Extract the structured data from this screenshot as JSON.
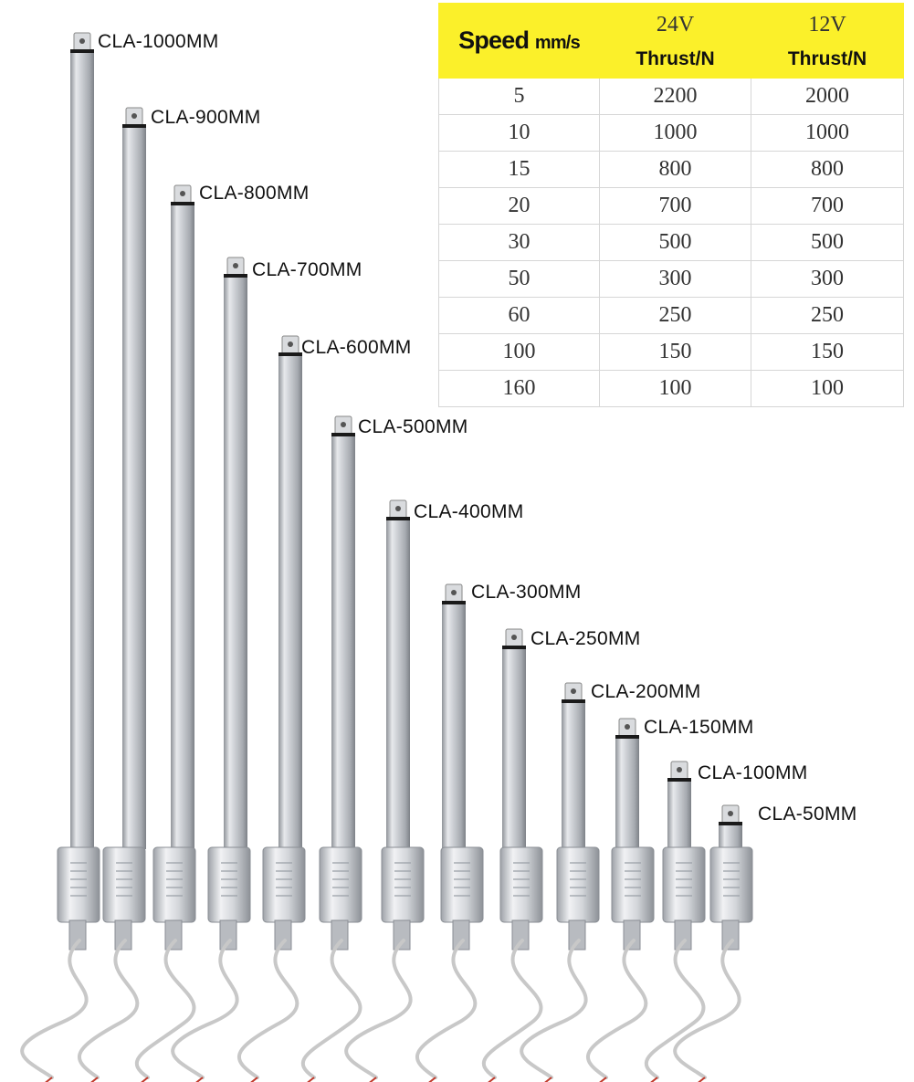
{
  "table": {
    "speed_header": "Speed",
    "speed_unit": "mm/s",
    "voltage_a": "24V",
    "voltage_b": "12V",
    "thrust_a": "Thrust/N",
    "thrust_b": "Thrust/N",
    "header_color": "#fbf02a",
    "rows": [
      {
        "speed": "5",
        "v24": "2200",
        "v12": "2000"
      },
      {
        "speed": "10",
        "v24": "1000",
        "v12": "1000"
      },
      {
        "speed": "15",
        "v24": "800",
        "v12": "800"
      },
      {
        "speed": "20",
        "v24": "700",
        "v12": "700"
      },
      {
        "speed": "30",
        "v24": "500",
        "v12": "500"
      },
      {
        "speed": "50",
        "v24": "300",
        "v12": "300"
      },
      {
        "speed": "60",
        "v24": "250",
        "v12": "250"
      },
      {
        "speed": "100",
        "v24": "150",
        "v12": "150"
      },
      {
        "speed": "160",
        "v24": "100",
        "v12": "100"
      }
    ]
  },
  "actuators": [
    {
      "label": "CLA-1000MM"
    },
    {
      "label": "CLA-900MM"
    },
    {
      "label": "CLA-800MM"
    },
    {
      "label": "CLA-700MM"
    },
    {
      "label": "CLA-600MM"
    },
    {
      "label": "CLA-500MM"
    },
    {
      "label": "CLA-400MM"
    },
    {
      "label": "CLA-300MM"
    },
    {
      "label": "CLA-250MM"
    },
    {
      "label": "CLA-200MM"
    },
    {
      "label": "CLA-150MM"
    },
    {
      "label": "CLA-100MM"
    },
    {
      "label": "CLA-50MM"
    }
  ]
}
